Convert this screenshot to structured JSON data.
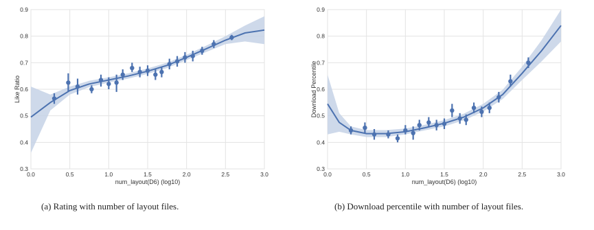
{
  "chart_data": [
    {
      "type": "scatter",
      "xlabel": "num_layout(D6) (log10)",
      "ylabel": "Like Ratio",
      "xlim": [
        0,
        3
      ],
      "ylim": [
        0.3,
        0.9
      ],
      "xticks": [
        "0.0",
        "0.5",
        "1.0",
        "1.5",
        "2.0",
        "2.5",
        "3.0"
      ],
      "yticks": [
        "0.3",
        "0.4",
        "0.5",
        "0.6",
        "0.7",
        "0.8",
        "0.9"
      ],
      "grid": true,
      "caption": "(a) Rating with number of layout files.",
      "points": [
        {
          "x": 0.3,
          "y": 0.565,
          "lo": 0.545,
          "hi": 0.585
        },
        {
          "x": 0.48,
          "y": 0.625,
          "lo": 0.59,
          "hi": 0.66
        },
        {
          "x": 0.6,
          "y": 0.61,
          "lo": 0.58,
          "hi": 0.64
        },
        {
          "x": 0.78,
          "y": 0.6,
          "lo": 0.585,
          "hi": 0.615
        },
        {
          "x": 0.9,
          "y": 0.635,
          "lo": 0.61,
          "hi": 0.655
        },
        {
          "x": 1.0,
          "y": 0.62,
          "lo": 0.6,
          "hi": 0.645
        },
        {
          "x": 1.1,
          "y": 0.625,
          "lo": 0.59,
          "hi": 0.655
        },
        {
          "x": 1.18,
          "y": 0.655,
          "lo": 0.635,
          "hi": 0.675
        },
        {
          "x": 1.3,
          "y": 0.68,
          "lo": 0.665,
          "hi": 0.7
        },
        {
          "x": 1.4,
          "y": 0.665,
          "lo": 0.645,
          "hi": 0.685
        },
        {
          "x": 1.5,
          "y": 0.67,
          "lo": 0.65,
          "hi": 0.69
        },
        {
          "x": 1.6,
          "y": 0.655,
          "lo": 0.635,
          "hi": 0.675
        },
        {
          "x": 1.68,
          "y": 0.665,
          "lo": 0.645,
          "hi": 0.685
        },
        {
          "x": 1.78,
          "y": 0.695,
          "lo": 0.675,
          "hi": 0.715
        },
        {
          "x": 1.88,
          "y": 0.705,
          "lo": 0.685,
          "hi": 0.725
        },
        {
          "x": 1.98,
          "y": 0.72,
          "lo": 0.7,
          "hi": 0.74
        },
        {
          "x": 2.08,
          "y": 0.725,
          "lo": 0.705,
          "hi": 0.745
        },
        {
          "x": 2.2,
          "y": 0.745,
          "lo": 0.73,
          "hi": 0.76
        },
        {
          "x": 2.35,
          "y": 0.77,
          "lo": 0.755,
          "hi": 0.785
        },
        {
          "x": 2.58,
          "y": 0.795,
          "lo": 0.785,
          "hi": 0.805
        }
      ],
      "curve": [
        {
          "x": 0.0,
          "y": 0.495
        },
        {
          "x": 0.25,
          "y": 0.55
        },
        {
          "x": 0.5,
          "y": 0.595
        },
        {
          "x": 0.75,
          "y": 0.62
        },
        {
          "x": 1.0,
          "y": 0.635
        },
        {
          "x": 1.25,
          "y": 0.65
        },
        {
          "x": 1.5,
          "y": 0.668
        },
        {
          "x": 1.75,
          "y": 0.69
        },
        {
          "x": 2.0,
          "y": 0.72
        },
        {
          "x": 2.25,
          "y": 0.752
        },
        {
          "x": 2.5,
          "y": 0.785
        },
        {
          "x": 2.75,
          "y": 0.812
        },
        {
          "x": 3.0,
          "y": 0.823
        }
      ],
      "band": [
        {
          "x": 0.0,
          "lo": 0.36,
          "hi": 0.61
        },
        {
          "x": 0.25,
          "lo": 0.52,
          "hi": 0.58
        },
        {
          "x": 0.5,
          "lo": 0.58,
          "hi": 0.61
        },
        {
          "x": 0.75,
          "lo": 0.608,
          "hi": 0.632
        },
        {
          "x": 1.0,
          "lo": 0.625,
          "hi": 0.645
        },
        {
          "x": 1.25,
          "lo": 0.64,
          "hi": 0.66
        },
        {
          "x": 1.5,
          "lo": 0.658,
          "hi": 0.678
        },
        {
          "x": 1.75,
          "lo": 0.68,
          "hi": 0.7
        },
        {
          "x": 2.0,
          "lo": 0.71,
          "hi": 0.73
        },
        {
          "x": 2.25,
          "lo": 0.74,
          "hi": 0.764
        },
        {
          "x": 2.5,
          "lo": 0.77,
          "hi": 0.8
        },
        {
          "x": 2.75,
          "lo": 0.78,
          "hi": 0.84
        },
        {
          "x": 3.0,
          "lo": 0.77,
          "hi": 0.875
        }
      ],
      "color": "#4c72b0",
      "band_color": "#c6d2e6"
    },
    {
      "type": "scatter",
      "xlabel": "num_layout(D6) (log10)",
      "ylabel": "Download Percentile",
      "xlim": [
        0,
        3
      ],
      "ylim": [
        0.3,
        0.9
      ],
      "xticks": [
        "0.0",
        "0.5",
        "1.0",
        "1.5",
        "2.0",
        "2.5",
        "3.0"
      ],
      "yticks": [
        "0.3",
        "0.4",
        "0.5",
        "0.6",
        "0.7",
        "0.8",
        "0.9"
      ],
      "grid": true,
      "caption": "(b) Download percentile with number of layout files.",
      "points": [
        {
          "x": 0.3,
          "y": 0.445,
          "lo": 0.43,
          "hi": 0.46
        },
        {
          "x": 0.48,
          "y": 0.455,
          "lo": 0.435,
          "hi": 0.475
        },
        {
          "x": 0.6,
          "y": 0.43,
          "lo": 0.41,
          "hi": 0.45
        },
        {
          "x": 0.78,
          "y": 0.43,
          "lo": 0.415,
          "hi": 0.445
        },
        {
          "x": 0.9,
          "y": 0.415,
          "lo": 0.4,
          "hi": 0.43
        },
        {
          "x": 1.0,
          "y": 0.445,
          "lo": 0.43,
          "hi": 0.465
        },
        {
          "x": 1.1,
          "y": 0.435,
          "lo": 0.41,
          "hi": 0.46
        },
        {
          "x": 1.18,
          "y": 0.465,
          "lo": 0.445,
          "hi": 0.485
        },
        {
          "x": 1.3,
          "y": 0.475,
          "lo": 0.46,
          "hi": 0.495
        },
        {
          "x": 1.4,
          "y": 0.465,
          "lo": 0.445,
          "hi": 0.485
        },
        {
          "x": 1.5,
          "y": 0.47,
          "lo": 0.45,
          "hi": 0.49
        },
        {
          "x": 1.6,
          "y": 0.52,
          "lo": 0.495,
          "hi": 0.545
        },
        {
          "x": 1.7,
          "y": 0.49,
          "lo": 0.47,
          "hi": 0.51
        },
        {
          "x": 1.78,
          "y": 0.485,
          "lo": 0.465,
          "hi": 0.505
        },
        {
          "x": 1.88,
          "y": 0.53,
          "lo": 0.51,
          "hi": 0.55
        },
        {
          "x": 1.98,
          "y": 0.515,
          "lo": 0.495,
          "hi": 0.535
        },
        {
          "x": 2.08,
          "y": 0.53,
          "lo": 0.51,
          "hi": 0.55
        },
        {
          "x": 2.2,
          "y": 0.57,
          "lo": 0.55,
          "hi": 0.59
        },
        {
          "x": 2.35,
          "y": 0.63,
          "lo": 0.61,
          "hi": 0.655
        },
        {
          "x": 2.58,
          "y": 0.7,
          "lo": 0.68,
          "hi": 0.72
        }
      ],
      "curve": [
        {
          "x": 0.0,
          "y": 0.545
        },
        {
          "x": 0.15,
          "y": 0.475
        },
        {
          "x": 0.3,
          "y": 0.445
        },
        {
          "x": 0.5,
          "y": 0.433
        },
        {
          "x": 0.75,
          "y": 0.433
        },
        {
          "x": 1.0,
          "y": 0.44
        },
        {
          "x": 1.25,
          "y": 0.455
        },
        {
          "x": 1.5,
          "y": 0.472
        },
        {
          "x": 1.75,
          "y": 0.495
        },
        {
          "x": 2.0,
          "y": 0.53
        },
        {
          "x": 2.25,
          "y": 0.58
        },
        {
          "x": 2.5,
          "y": 0.66
        },
        {
          "x": 2.75,
          "y": 0.745
        },
        {
          "x": 3.0,
          "y": 0.84
        }
      ],
      "band": [
        {
          "x": 0.0,
          "lo": 0.43,
          "hi": 0.655
        },
        {
          "x": 0.15,
          "lo": 0.44,
          "hi": 0.51
        },
        {
          "x": 0.3,
          "lo": 0.43,
          "hi": 0.46
        },
        {
          "x": 0.5,
          "lo": 0.42,
          "hi": 0.446
        },
        {
          "x": 0.75,
          "lo": 0.42,
          "hi": 0.446
        },
        {
          "x": 1.0,
          "lo": 0.43,
          "hi": 0.452
        },
        {
          "x": 1.25,
          "lo": 0.445,
          "hi": 0.466
        },
        {
          "x": 1.5,
          "lo": 0.46,
          "hi": 0.484
        },
        {
          "x": 1.75,
          "lo": 0.483,
          "hi": 0.508
        },
        {
          "x": 2.0,
          "lo": 0.516,
          "hi": 0.545
        },
        {
          "x": 2.25,
          "lo": 0.563,
          "hi": 0.598
        },
        {
          "x": 2.5,
          "lo": 0.635,
          "hi": 0.685
        },
        {
          "x": 2.75,
          "lo": 0.705,
          "hi": 0.785
        },
        {
          "x": 3.0,
          "lo": 0.78,
          "hi": 0.9
        }
      ],
      "color": "#4c72b0",
      "band_color": "#c6d2e6"
    }
  ]
}
